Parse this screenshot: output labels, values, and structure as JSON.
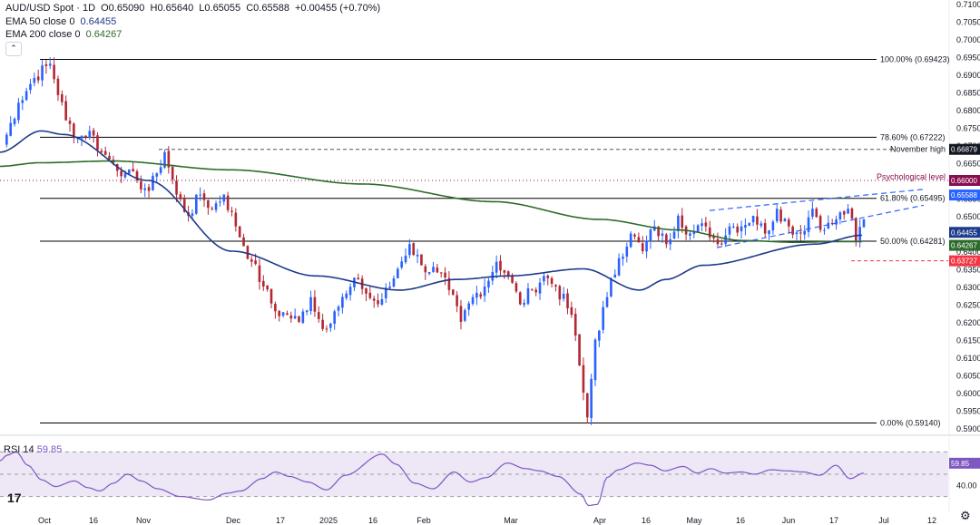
{
  "header": {
    "symbol": "AUD/USD Spot · 1D",
    "o_label": "O",
    "o": "0.65090",
    "h_label": "H",
    "h": "0.65640",
    "l_label": "L",
    "l": "0.65055",
    "c_label": "C",
    "c": "0.65588",
    "change": "+0.00455 (+0.70%)",
    "ema50_label": "EMA 50 close 0",
    "ema50": "0.64455",
    "ema200_label": "EMA 200 close 0",
    "ema200": "0.64267",
    "rsi_label": "RSI 14",
    "rsi": "59.85"
  },
  "colors": {
    "up": "#2962ff",
    "down": "#b22833",
    "ema50": "#1e3a8a",
    "ema200": "#2e6b2b",
    "psych": "#880e4f",
    "low": "#f23645",
    "rsi": "#7e57c2",
    "rsi_bg": "#ede7f6"
  },
  "icons": {
    "collapse": "chevron-up-icon",
    "logo": "tradingview-logo-icon",
    "settings": "gear-icon"
  },
  "chart_data": {
    "type": "candlestick",
    "y_range": [
      0.59,
      0.71
    ],
    "y_ticks": [
      "0.71000",
      "0.70500",
      "0.70000",
      "0.69500",
      "0.69000",
      "0.68500",
      "0.68000",
      "0.67500",
      "0.67000",
      "0.66500",
      "0.66000",
      "0.65500",
      "0.65000",
      "0.64500",
      "0.64000",
      "0.63500",
      "0.63000",
      "0.62500",
      "0.62000",
      "0.61500",
      "0.61000",
      "0.60500",
      "0.60000",
      "0.59500",
      "0.59000"
    ],
    "x_labels": [
      "Oct",
      "16",
      "Nov",
      "Dec",
      "17",
      "2025",
      "16",
      "Feb",
      "Mar",
      "Apr",
      "16",
      "May",
      "16",
      "Jun",
      "17",
      "Jul",
      "12"
    ],
    "fib_levels": [
      {
        "label": "100.00% (0.69423)",
        "value": 0.69423
      },
      {
        "label": "78.60% (0.67222)",
        "value": 0.67222
      },
      {
        "label": "61.80% (0.65495)",
        "value": 0.65495
      },
      {
        "label": "50.00% (0.64281)",
        "value": 0.64281
      },
      {
        "label": "0.00% (0.59140)",
        "value": 0.5914
      }
    ],
    "november_high": {
      "label": "November high",
      "value": 0.66879,
      "value_text": "0.66879"
    },
    "psychological_level": {
      "label": "Psychological level",
      "value": 0.66,
      "value_text": "0.66000"
    },
    "june_low": {
      "value": 0.63727,
      "value_text": "0.63727"
    },
    "price_badges": {
      "last": "0.65588",
      "ema50": "0.64455",
      "ema200": "0.64267"
    },
    "price_path": [
      [
        0.67,
        0
      ],
      [
        0.682,
        4
      ],
      [
        0.689,
        4
      ],
      [
        0.693,
        4
      ],
      [
        0.677,
        4
      ],
      [
        0.672,
        3
      ],
      [
        0.674,
        3
      ],
      [
        0.668,
        3
      ],
      [
        0.665,
        3
      ],
      [
        0.662,
        3
      ],
      [
        0.66,
        3
      ],
      [
        0.657,
        3
      ],
      [
        0.662,
        2
      ],
      [
        0.668,
        2
      ],
      [
        0.656,
        3
      ],
      [
        0.65,
        3
      ],
      [
        0.656,
        3
      ],
      [
        0.652,
        3
      ],
      [
        0.656,
        3
      ],
      [
        0.647,
        3
      ],
      [
        0.637,
        4
      ],
      [
        0.63,
        3
      ],
      [
        0.623,
        3
      ],
      [
        0.622,
        3
      ],
      [
        0.62,
        3
      ],
      [
        0.627,
        3
      ],
      [
        0.618,
        3
      ],
      [
        0.623,
        3
      ],
      [
        0.628,
        3
      ],
      [
        0.632,
        3
      ],
      [
        0.628,
        2
      ],
      [
        0.625,
        3
      ],
      [
        0.63,
        3
      ],
      [
        0.635,
        2
      ],
      [
        0.642,
        3
      ],
      [
        0.636,
        3
      ],
      [
        0.634,
        4
      ],
      [
        0.629,
        3
      ],
      [
        0.62,
        3
      ],
      [
        0.627,
        3
      ],
      [
        0.63,
        3
      ],
      [
        0.637,
        3
      ],
      [
        0.633,
        3
      ],
      [
        0.625,
        3
      ],
      [
        0.629,
        3
      ],
      [
        0.633,
        3
      ],
      [
        0.63,
        3
      ],
      [
        0.622,
        4
      ],
      [
        0.6,
        3
      ],
      [
        0.593,
        1
      ],
      [
        0.615,
        2
      ],
      [
        0.627,
        3
      ],
      [
        0.638,
        3
      ],
      [
        0.645,
        3
      ],
      [
        0.64,
        3
      ],
      [
        0.647,
        3
      ],
      [
        0.642,
        3
      ],
      [
        0.65,
        3
      ],
      [
        0.645,
        3
      ],
      [
        0.647,
        4
      ],
      [
        0.642,
        3
      ],
      [
        0.647,
        3
      ],
      [
        0.647,
        3
      ],
      [
        0.65,
        3
      ],
      [
        0.645,
        3
      ],
      [
        0.652,
        3
      ],
      [
        0.647,
        3
      ],
      [
        0.645,
        3
      ],
      [
        0.652,
        3
      ],
      [
        0.646,
        3
      ],
      [
        0.649,
        3
      ],
      [
        0.652,
        3
      ],
      [
        0.643,
        2
      ],
      [
        0.649,
        2
      ],
      [
        0.6559,
        0
      ]
    ],
    "candle_seed": 7,
    "ema50_path": [
      [
        0.668,
        0
      ],
      [
        0.674,
        22
      ],
      [
        0.673,
        12
      ],
      [
        0.66,
        45
      ],
      [
        0.64,
        45
      ],
      [
        0.633,
        45
      ],
      [
        0.629,
        45
      ],
      [
        0.632,
        30
      ],
      [
        0.633,
        28
      ],
      [
        0.635,
        40
      ],
      [
        0.629,
        30
      ],
      [
        0.632,
        14
      ],
      [
        0.636,
        20
      ],
      [
        0.642,
        60
      ],
      [
        0.6445,
        25
      ]
    ],
    "ema200_path": [
      [
        0.664,
        0
      ],
      [
        0.665,
        30
      ],
      [
        0.6655,
        55
      ],
      [
        0.663,
        90
      ],
      [
        0.659,
        100
      ],
      [
        0.654,
        100
      ],
      [
        0.649,
        80
      ],
      [
        0.646,
        60
      ],
      [
        0.643,
        50
      ],
      [
        0.6425,
        40
      ],
      [
        0.6427,
        30
      ],
      [
        0.6427,
        20
      ]
    ],
    "channel": {
      "upper": [
        [
          0.6515,
          782
        ],
        [
          0.6575,
          1018
        ]
      ],
      "lower": [
        [
          0.641,
          790
        ],
        [
          0.653,
          1018
        ]
      ]
    },
    "rsi": {
      "label": "RSI 14",
      "last": "59.85",
      "levels": [
        70,
        50,
        30
      ],
      "ytick": "40.00",
      "range": [
        20,
        80
      ],
      "path": [
        [
          62,
          0
        ],
        [
          67,
          3
        ],
        [
          70,
          4
        ],
        [
          58,
          5
        ],
        [
          45,
          6
        ],
        [
          39,
          6
        ],
        [
          44,
          8
        ],
        [
          38,
          6
        ],
        [
          35,
          5
        ],
        [
          42,
          6
        ],
        [
          50,
          6
        ],
        [
          44,
          6
        ],
        [
          37,
          7
        ],
        [
          30,
          10
        ],
        [
          27,
          12
        ],
        [
          33,
          8
        ],
        [
          35,
          6
        ],
        [
          46,
          9
        ],
        [
          52,
          6
        ],
        [
          48,
          6
        ],
        [
          43,
          8
        ],
        [
          36,
          8
        ],
        [
          49,
          8
        ],
        [
          68,
          16
        ],
        [
          59,
          6
        ],
        [
          42,
          8
        ],
        [
          37,
          8
        ],
        [
          52,
          9
        ],
        [
          43,
          7
        ],
        [
          47,
          7
        ],
        [
          60,
          9
        ],
        [
          55,
          8
        ],
        [
          53,
          6
        ],
        [
          48,
          8
        ],
        [
          32,
          10
        ],
        [
          22,
          3
        ],
        [
          23,
          4
        ],
        [
          47,
          4
        ],
        [
          54,
          5
        ],
        [
          60,
          8
        ],
        [
          58,
          6
        ],
        [
          53,
          6
        ],
        [
          57,
          8
        ],
        [
          51,
          6
        ],
        [
          55,
          6
        ],
        [
          51,
          6
        ],
        [
          52,
          7
        ],
        [
          50,
          6
        ],
        [
          54,
          7
        ],
        [
          53,
          7
        ],
        [
          52,
          7
        ],
        [
          49,
          7
        ],
        [
          58,
          7
        ],
        [
          46,
          6
        ],
        [
          51,
          6
        ],
        [
          59.85,
          0
        ]
      ]
    }
  }
}
